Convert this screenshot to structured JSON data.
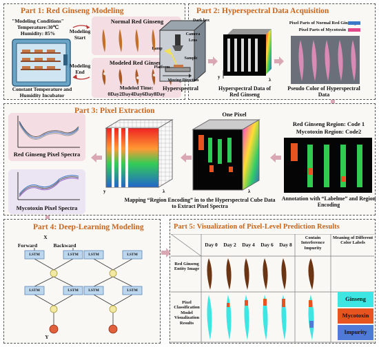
{
  "part1": {
    "title": "Part 1: Red Ginseng Modeling",
    "conditions_title": "\"Modeling Conditions\"",
    "temperature": "Temperature:30℃",
    "humidity": "Humidity:  85%",
    "modeling_start": "Modeling Start",
    "modeling_end": "Modeling End",
    "incubator_label": "Constant Temperature and Humidity Incubator",
    "normal_label": "Normal Red Ginseng",
    "modeled_label": "Modeled Red Ginseng",
    "modeled_time": "Modeled Time:",
    "days": "0Day2Day4Day6Day8Day"
  },
  "part2": {
    "title": "Part 2: Hyperspectral Data Acquisition",
    "dark_box": "Dark box",
    "camera": "Camera",
    "lens": "Lens",
    "lamp": "Lamp",
    "sample": "Sample",
    "platform": "Platform",
    "moving_direction": "Moving Direction",
    "hyperspectral": "Hyperspectral",
    "hsi_data": "Hyperspectral Data of Red Ginseng",
    "pixel_normal": "Pixel Parts of Normal Red Ginseng",
    "pixel_myco": "Pixel Parts of Mycotoxin",
    "pseudo": "Pseudo Color of Hyperspectral Data"
  },
  "part3": {
    "title": "Part 3: Pixel Extraction",
    "rg_spectra": "Red Ginseng Pixel Spectra",
    "myco_spectra": "Mycotoxin Pixel Spectra",
    "one_pixel": "One Pixel",
    "code1": "Red Ginseng Region: Code 1",
    "code2": "Mycotoxin Region: Code2",
    "mapping": "Mapping “Region Encoding” in to the Hyperspectral Cube Data to Extract Pixel Spectra",
    "annotation": "Annotation with “Labelme” and Region Encoding"
  },
  "part4": {
    "title": "Part 4: Deep-Learning Modeling",
    "forward": "Forward",
    "backward": "Backward",
    "lstm": "LSTM",
    "x": "X",
    "y": "Y"
  },
  "part5": {
    "title": "Part 5: Visualization of Pixel-Level Prediction Results",
    "days": [
      "Day 0",
      "Day 2",
      "Day 4",
      "Day 6",
      "Day 8"
    ],
    "contain": "Contain Interference Impurity",
    "meaning": "Meaning of Different Color Labels",
    "row1": "Red Ginseng Entity Image",
    "row2": "Pixel Classification Model Visualization Results",
    "legend": [
      "Ginseng",
      "Mycotoxin",
      "Impurity"
    ]
  },
  "colors": {
    "title": "#c8651c",
    "arrow": "#d9a8b4",
    "ginseng": "#3ee6e3",
    "mycotoxin": "#e8541f",
    "impurity": "#4f7ad8"
  }
}
